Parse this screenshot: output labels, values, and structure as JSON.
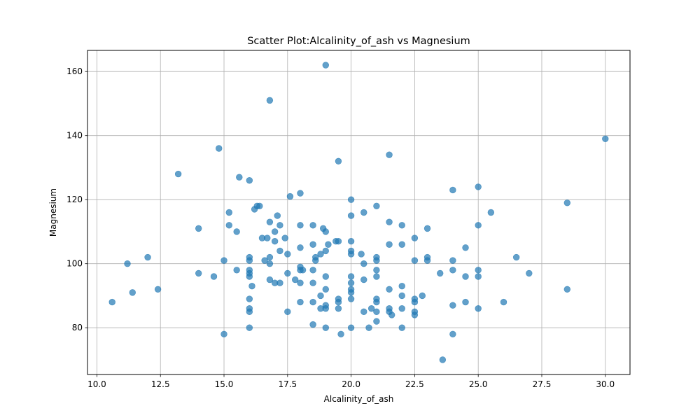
{
  "chart_data": {
    "type": "scatter",
    "title": "Scatter Plot:Alcalinity_of_ash vs Magnesium",
    "xlabel": "Alcalinity_of_ash",
    "ylabel": "Magnesium",
    "xlim": [
      9.63,
      30.97
    ],
    "ylim": [
      65.4,
      166.6
    ],
    "x_ticks": [
      "10.0",
      "12.5",
      "15.0",
      "17.5",
      "20.0",
      "22.5",
      "25.0",
      "27.5",
      "30.0"
    ],
    "y_ticks": [
      "80",
      "100",
      "120",
      "140",
      "160"
    ],
    "grid": true,
    "marker_color": "#1f77b4",
    "marker_alpha": 0.7,
    "points": [
      [
        10.6,
        88
      ],
      [
        11.2,
        100
      ],
      [
        11.4,
        91
      ],
      [
        12.0,
        102
      ],
      [
        12.4,
        92
      ],
      [
        13.2,
        128
      ],
      [
        14.0,
        111
      ],
      [
        14.0,
        97
      ],
      [
        14.6,
        96
      ],
      [
        14.8,
        136
      ],
      [
        15.0,
        101
      ],
      [
        15.0,
        78
      ],
      [
        15.2,
        116
      ],
      [
        15.2,
        112
      ],
      [
        15.5,
        110
      ],
      [
        15.5,
        98
      ],
      [
        15.6,
        127
      ],
      [
        16.0,
        126
      ],
      [
        16.0,
        102
      ],
      [
        16.0,
        101
      ],
      [
        16.0,
        98
      ],
      [
        16.0,
        97
      ],
      [
        16.0,
        96
      ],
      [
        16.0,
        89
      ],
      [
        16.0,
        86
      ],
      [
        16.0,
        85
      ],
      [
        16.0,
        80
      ],
      [
        16.1,
        93
      ],
      [
        16.2,
        117
      ],
      [
        16.3,
        118
      ],
      [
        16.4,
        118
      ],
      [
        16.5,
        108
      ],
      [
        16.6,
        101
      ],
      [
        16.7,
        108
      ],
      [
        16.8,
        151
      ],
      [
        16.8,
        113
      ],
      [
        16.8,
        102
      ],
      [
        16.8,
        100
      ],
      [
        16.8,
        95
      ],
      [
        17.0,
        110
      ],
      [
        17.0,
        107
      ],
      [
        17.0,
        94
      ],
      [
        17.1,
        115
      ],
      [
        17.2,
        112
      ],
      [
        17.2,
        104
      ],
      [
        17.2,
        94
      ],
      [
        17.4,
        108
      ],
      [
        17.5,
        103
      ],
      [
        17.5,
        97
      ],
      [
        17.5,
        85
      ],
      [
        17.6,
        121
      ],
      [
        17.8,
        95
      ],
      [
        18.0,
        122
      ],
      [
        18.0,
        112
      ],
      [
        18.0,
        105
      ],
      [
        18.0,
        99
      ],
      [
        18.0,
        98
      ],
      [
        18.0,
        94
      ],
      [
        18.0,
        88
      ],
      [
        18.1,
        98
      ],
      [
        18.5,
        112
      ],
      [
        18.5,
        106
      ],
      [
        18.5,
        98
      ],
      [
        18.5,
        94
      ],
      [
        18.5,
        88
      ],
      [
        18.5,
        81
      ],
      [
        18.6,
        102
      ],
      [
        18.6,
        101
      ],
      [
        18.8,
        103
      ],
      [
        18.8,
        90
      ],
      [
        18.8,
        86
      ],
      [
        18.9,
        111
      ],
      [
        19.0,
        162
      ],
      [
        19.0,
        110
      ],
      [
        19.0,
        104
      ],
      [
        19.0,
        96
      ],
      [
        19.0,
        92
      ],
      [
        19.0,
        87
      ],
      [
        19.0,
        86
      ],
      [
        19.0,
        80
      ],
      [
        19.1,
        106
      ],
      [
        19.4,
        107
      ],
      [
        19.5,
        132
      ],
      [
        19.5,
        107
      ],
      [
        19.5,
        89
      ],
      [
        19.5,
        88
      ],
      [
        19.5,
        86
      ],
      [
        19.6,
        78
      ],
      [
        20.0,
        120
      ],
      [
        20.0,
        115
      ],
      [
        20.0,
        107
      ],
      [
        20.0,
        104
      ],
      [
        20.0,
        103
      ],
      [
        20.0,
        96
      ],
      [
        20.0,
        94
      ],
      [
        20.0,
        92
      ],
      [
        20.0,
        91
      ],
      [
        20.0,
        89
      ],
      [
        20.0,
        80
      ],
      [
        20.4,
        103
      ],
      [
        20.5,
        116
      ],
      [
        20.5,
        100
      ],
      [
        20.5,
        95
      ],
      [
        20.5,
        85
      ],
      [
        20.7,
        80
      ],
      [
        20.8,
        86
      ],
      [
        21.0,
        118
      ],
      [
        21.0,
        102
      ],
      [
        21.0,
        101
      ],
      [
        21.0,
        98
      ],
      [
        21.0,
        96
      ],
      [
        21.0,
        89
      ],
      [
        21.0,
        88
      ],
      [
        21.0,
        85
      ],
      [
        21.0,
        82
      ],
      [
        21.5,
        134
      ],
      [
        21.5,
        113
      ],
      [
        21.5,
        106
      ],
      [
        21.5,
        92
      ],
      [
        21.5,
        86
      ],
      [
        21.5,
        85
      ],
      [
        21.6,
        84
      ],
      [
        22.0,
        112
      ],
      [
        22.0,
        106
      ],
      [
        22.0,
        93
      ],
      [
        22.0,
        90
      ],
      [
        22.0,
        86
      ],
      [
        22.0,
        80
      ],
      [
        22.5,
        108
      ],
      [
        22.5,
        101
      ],
      [
        22.5,
        89
      ],
      [
        22.5,
        88
      ],
      [
        22.5,
        85
      ],
      [
        22.5,
        84
      ],
      [
        22.8,
        90
      ],
      [
        23.0,
        111
      ],
      [
        23.0,
        102
      ],
      [
        23.0,
        101
      ],
      [
        23.5,
        97
      ],
      [
        23.6,
        70
      ],
      [
        24.0,
        123
      ],
      [
        24.0,
        101
      ],
      [
        24.0,
        98
      ],
      [
        24.0,
        87
      ],
      [
        24.0,
        78
      ],
      [
        24.5,
        105
      ],
      [
        24.5,
        96
      ],
      [
        24.5,
        88
      ],
      [
        25.0,
        124
      ],
      [
        25.0,
        112
      ],
      [
        25.0,
        98
      ],
      [
        25.0,
        96
      ],
      [
        25.0,
        86
      ],
      [
        25.5,
        116
      ],
      [
        26.0,
        88
      ],
      [
        26.5,
        102
      ],
      [
        27.0,
        97
      ],
      [
        28.5,
        119
      ],
      [
        28.5,
        92
      ],
      [
        30.0,
        139
      ]
    ]
  }
}
